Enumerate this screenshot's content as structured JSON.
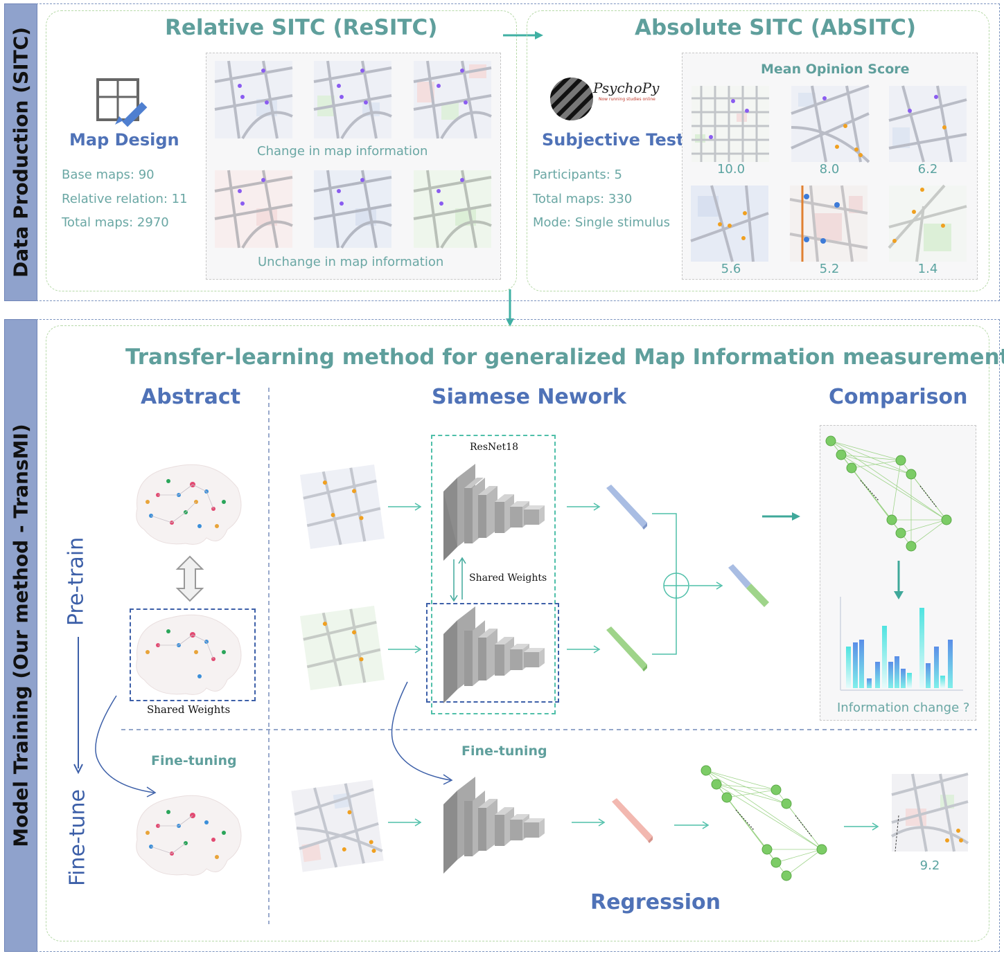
{
  "top": {
    "sidebar_label": "Data Production (SITC)",
    "resitc": {
      "title": "Relative SITC (ReSITC)",
      "map_design_label": "Map Design",
      "stats": [
        "Base maps: 90",
        "Relative relation: 11",
        "Total maps: 2970"
      ],
      "change_label": "Change in map information",
      "unchange_label": "Unchange in map information"
    },
    "absitc": {
      "title": "Absolute SITC (AbSITC)",
      "logo_text": "PsychoPy",
      "logo_subtext": "Now running studies online",
      "subjective_label": "Subjective Test",
      "stats": [
        "Participants: 5",
        "Total maps: 330",
        "Mode: Single stimulus"
      ],
      "mos_title": "Mean Opinion Score",
      "scores": [
        "10.0",
        "8.0",
        "6.2",
        "5.6",
        "5.2",
        "1.4"
      ]
    }
  },
  "bottom": {
    "sidebar_label": "Model Training (Our method  - TransMI)",
    "title": "Transfer-learning method for generalized Map Information measurement",
    "pretrain_label": "Pre-train",
    "finetune_label": "Fine-tune",
    "abstract": {
      "title": "Abstract",
      "shared_weights": "Shared Weights",
      "finetuning": "Fine-tuning"
    },
    "siamese": {
      "title": "Siamese Nework",
      "resnet_label": "ResNet18",
      "shared_weights": "Shared  Weights",
      "finetuning": "Fine-tuning"
    },
    "comparison": {
      "title": "Comparison",
      "info_change": "Information change ?"
    },
    "regression": {
      "title": "Regression",
      "score": "9.2"
    }
  }
}
